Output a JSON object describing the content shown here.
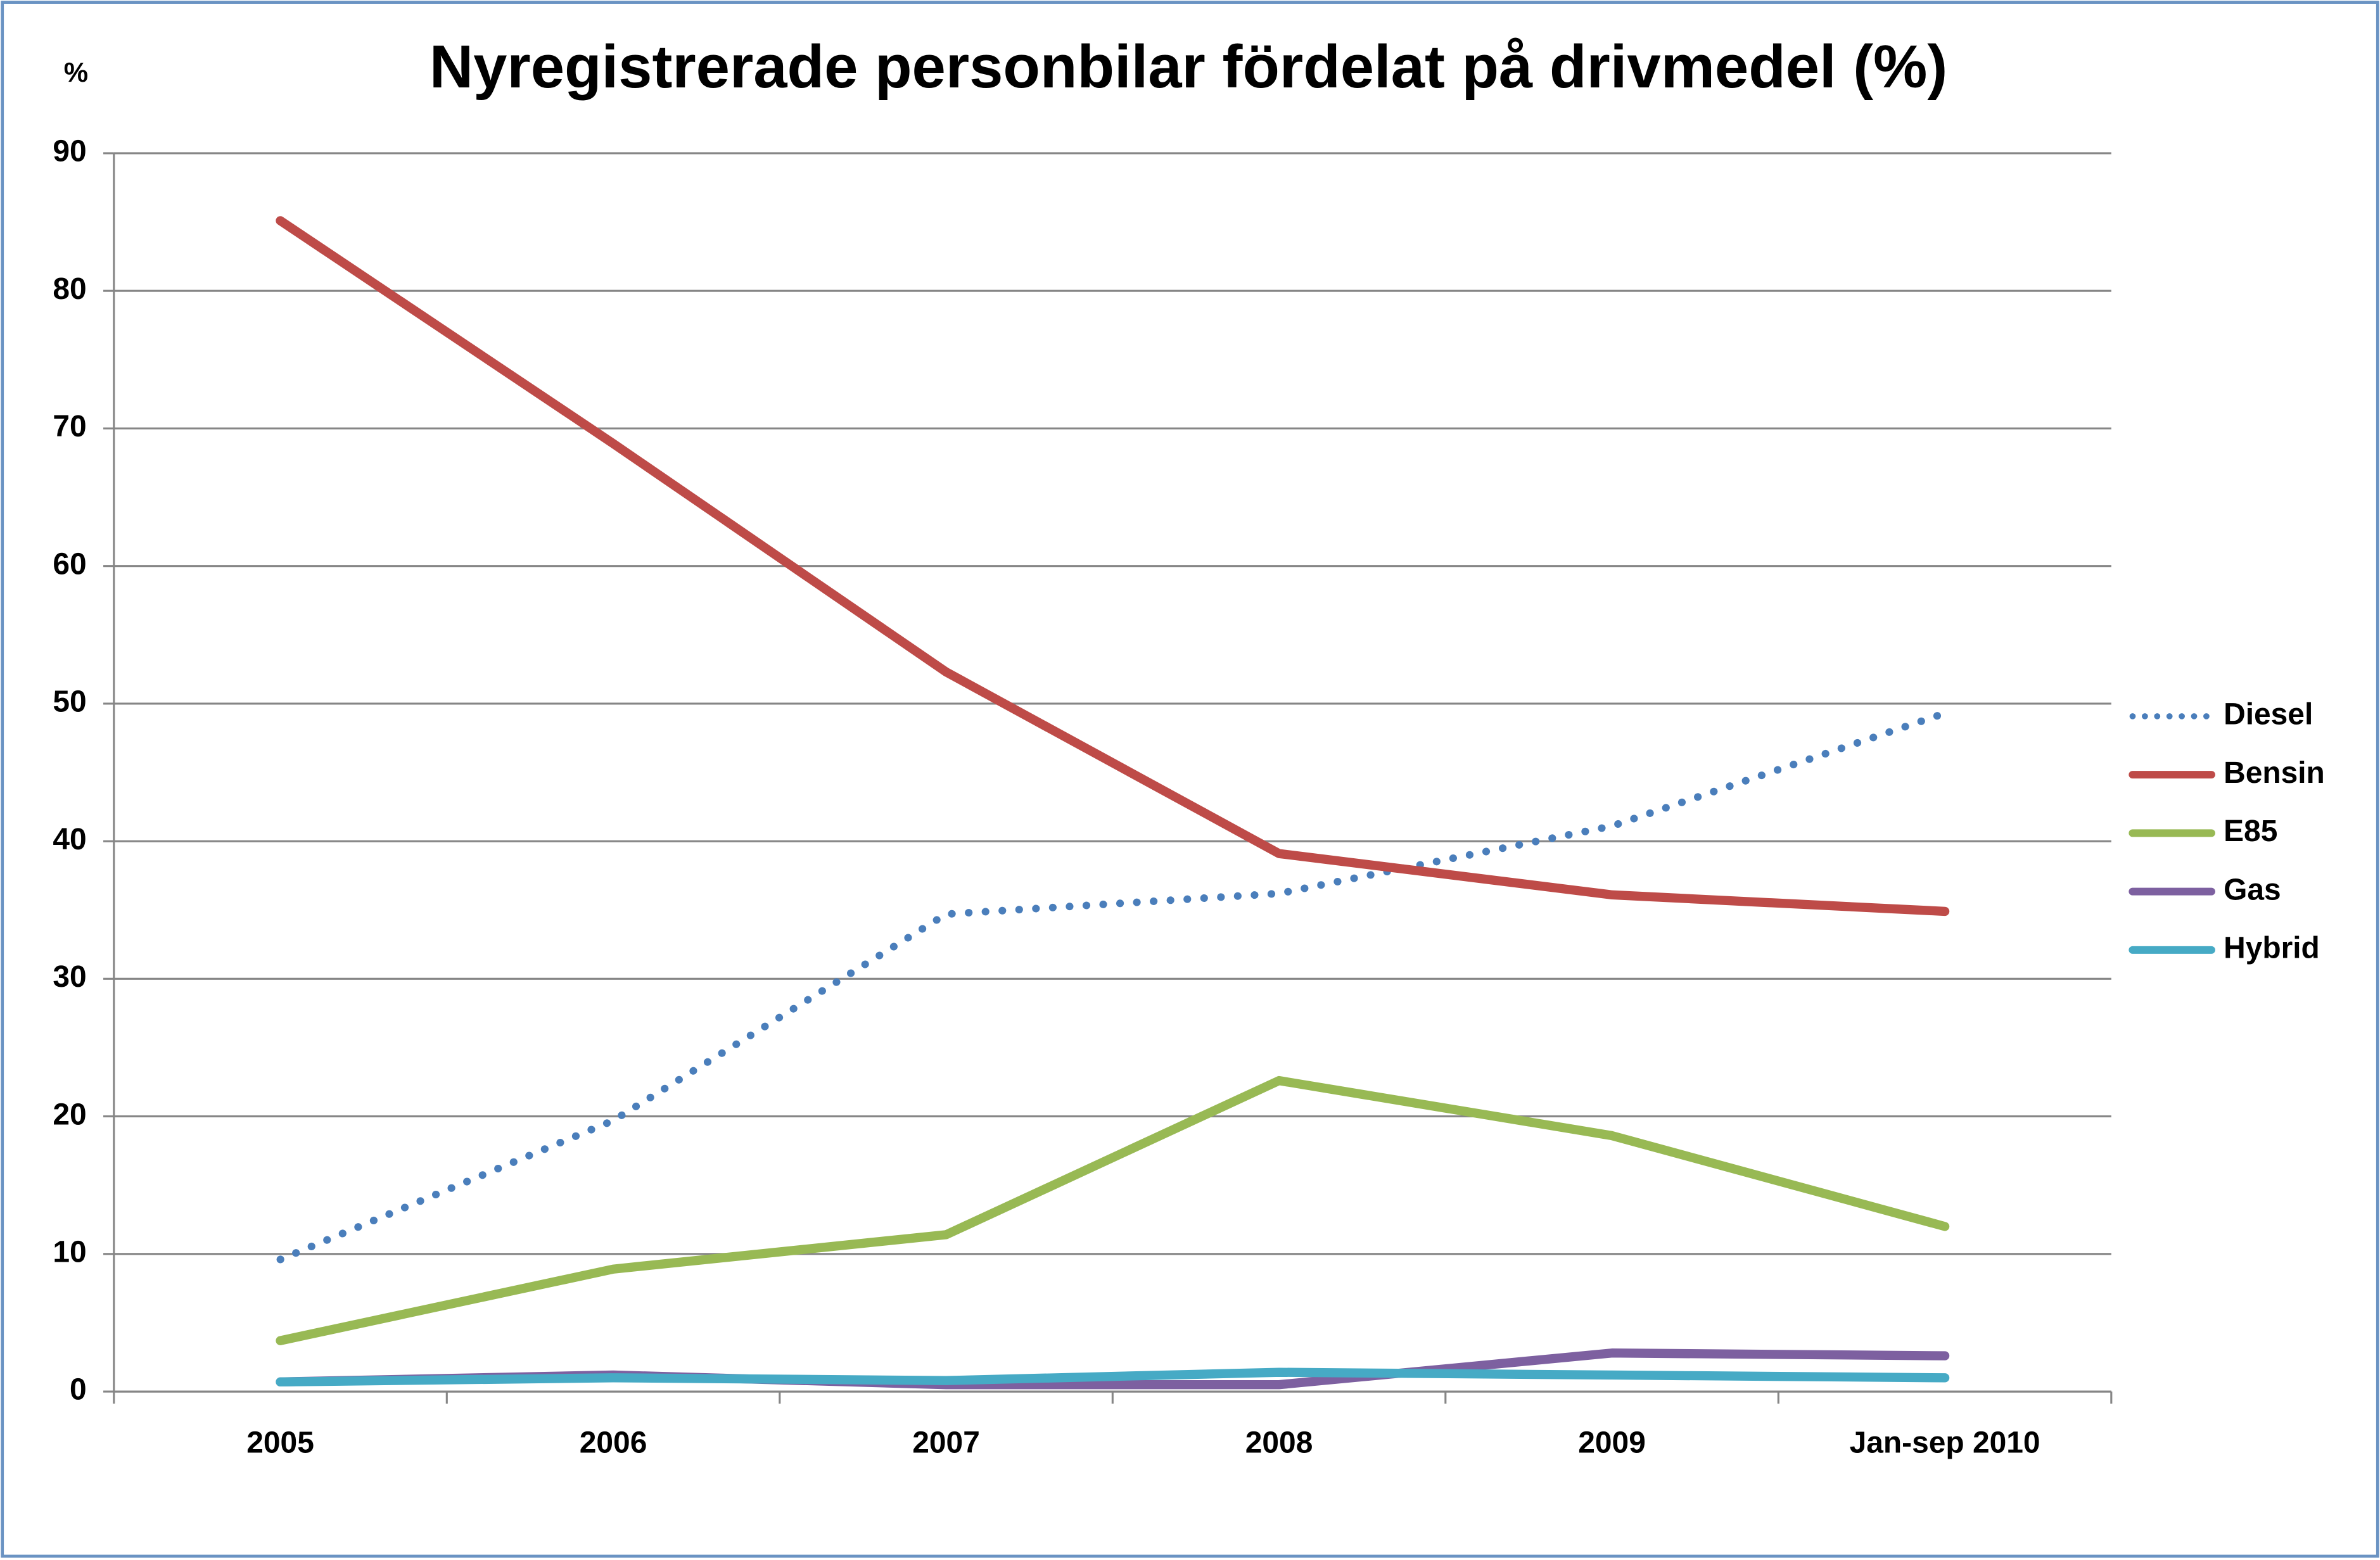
{
  "chart_data": {
    "type": "line",
    "title": "Nyregistrerade personbilar fördelat på drivmedel (%)",
    "y_label": "%",
    "categories": [
      "2005",
      "2006",
      "2007",
      "2008",
      "2009",
      "Jan-sep 2010"
    ],
    "series": [
      {
        "name": "Diesel",
        "color": "#4a7ebb",
        "dash": "dotted",
        "values": [
          9.6,
          19.7,
          34.7,
          36.2,
          41.1,
          49.3
        ]
      },
      {
        "name": "Bensin",
        "color": "#be4b48",
        "values": [
          85.1,
          68.9,
          52.3,
          39.1,
          36.1,
          34.9
        ]
      },
      {
        "name": "E85",
        "color": "#98b954",
        "values": [
          3.7,
          8.9,
          11.4,
          22.6,
          18.6,
          12.0
        ]
      },
      {
        "name": "Gas",
        "color": "#7d60a0",
        "values": [
          0.7,
          1.2,
          0.5,
          0.5,
          2.8,
          2.6
        ]
      },
      {
        "name": "Hybrid",
        "color": "#46aac5",
        "values": [
          0.7,
          1.0,
          0.8,
          1.4,
          1.2,
          1.0
        ]
      }
    ],
    "ylim": [
      0,
      90
    ],
    "yticks": [
      0,
      10,
      20,
      30,
      40,
      50,
      60,
      70,
      80,
      90
    ],
    "grid": true,
    "legend": "right"
  }
}
